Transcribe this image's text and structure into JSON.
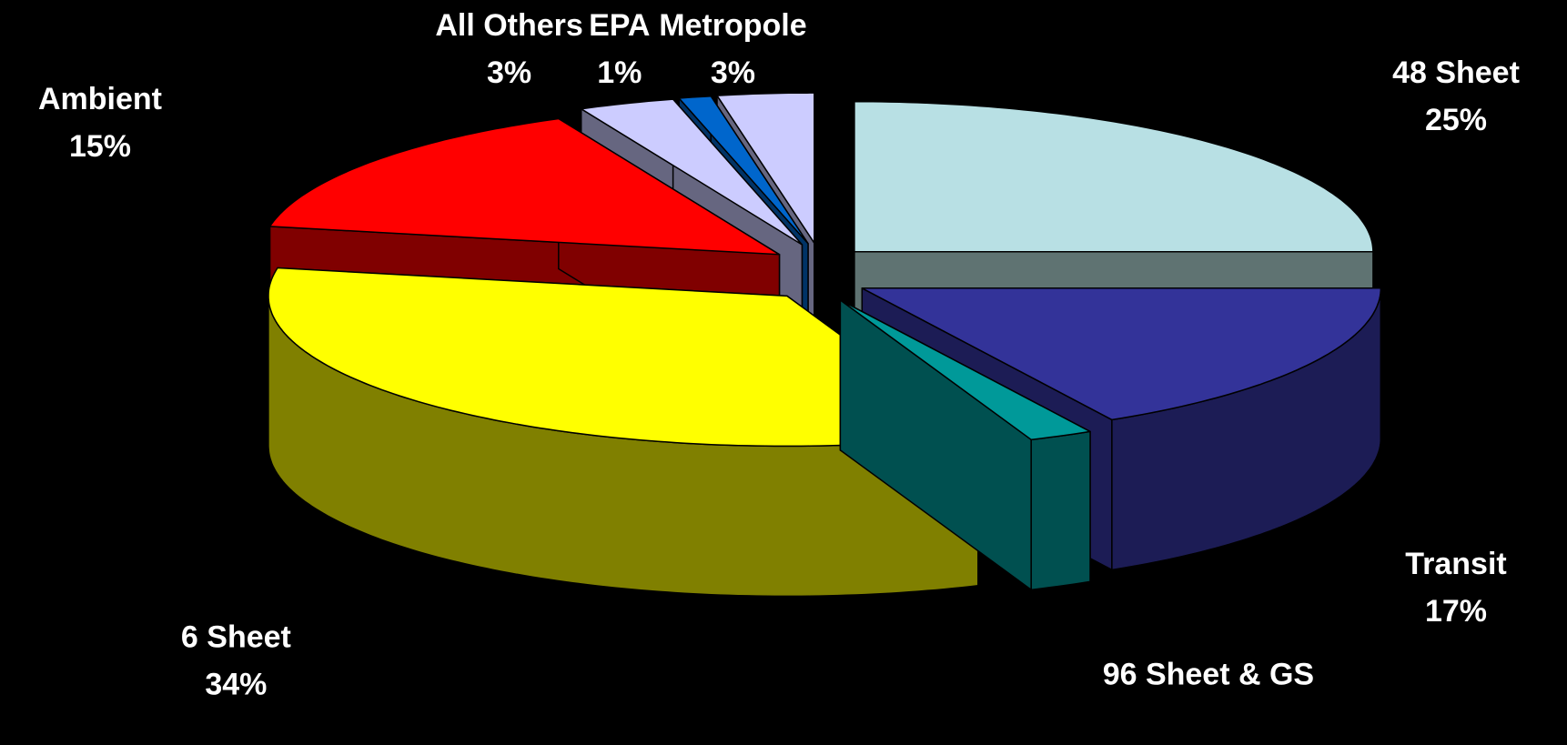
{
  "chart_data": {
    "type": "pie",
    "categories": [
      "48 Sheet",
      "Transit",
      "96 Sheet & GS",
      "6 Sheet",
      "Ambient",
      "All Others",
      "EPA",
      "Metropole"
    ],
    "values": [
      25,
      17,
      2,
      34,
      15,
      3,
      1,
      3
    ],
    "value_labels": [
      "25%",
      "17%",
      null,
      "34%",
      "15%",
      "3%",
      "1%",
      "3%"
    ],
    "colors": [
      "#b8e0e4",
      "#333399",
      "#009999",
      "#ffff00",
      "#ff0000",
      "#ccccff",
      "#0066cc",
      "#ccccff"
    ],
    "side_colors": [
      "#5f7372",
      "#1c1c55",
      "#005050",
      "#808000",
      "#800000",
      "#666680",
      "#003366",
      "#666680"
    ]
  }
}
